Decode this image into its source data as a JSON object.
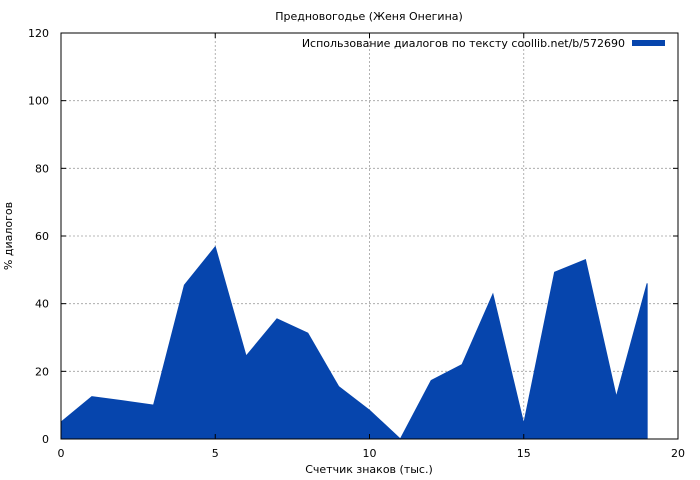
{
  "chart_data": {
    "type": "area",
    "title": "Предновогодье (Женя Онегина)",
    "xlabel": "Счетчик знаков (тыс.)",
    "ylabel": "% диалогов",
    "xlim": [
      0,
      20
    ],
    "ylim": [
      0,
      120
    ],
    "xticks": [
      0,
      5,
      10,
      15,
      20
    ],
    "yticks": [
      0,
      20,
      40,
      60,
      80,
      100,
      120
    ],
    "grid": true,
    "legend": "top-right",
    "series": [
      {
        "name": "Использование диалогов по тексту coollib.net/b/572690",
        "color": "#0645ad",
        "x": [
          0,
          1,
          2,
          3,
          4,
          5,
          6,
          7,
          8,
          9,
          10,
          11,
          12,
          13,
          14,
          15,
          16,
          17,
          18,
          19
        ],
        "values": [
          5,
          12.5,
          11.3,
          10,
          45.5,
          56.8,
          24.5,
          35.5,
          31.3,
          15.5,
          8.5,
          0,
          17.3,
          22,
          42.8,
          4.5,
          49.3,
          53,
          12.5,
          46
        ]
      }
    ]
  }
}
